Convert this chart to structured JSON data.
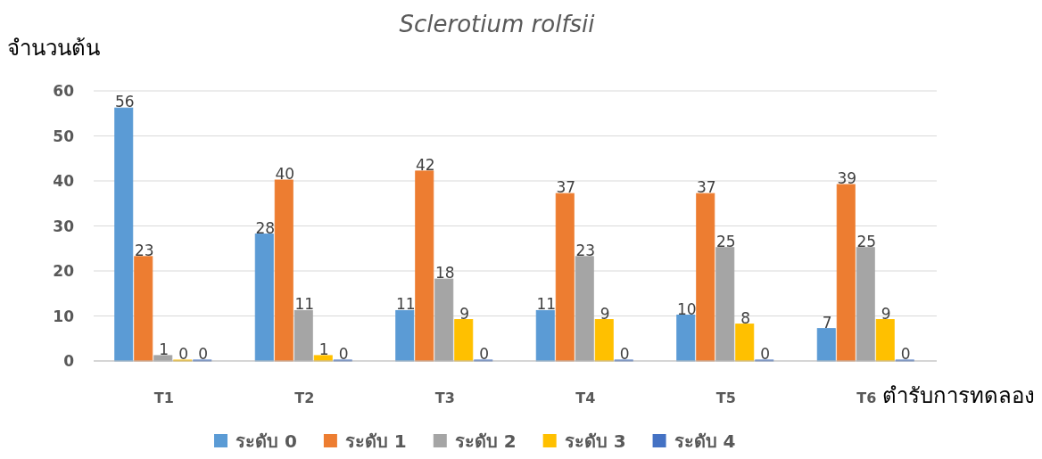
{
  "chart_data": {
    "type": "bar",
    "title": "Sclerotium rolfsii",
    "ylabel": "จำนวนต้น",
    "xlabel": "ตำรับการทดลอง",
    "categories": [
      "T1",
      "T2",
      "T3",
      "T4",
      "T5",
      "T6"
    ],
    "series": [
      {
        "name": "ระดับ 0",
        "color": "#5b9bd5",
        "values": [
          56,
          28,
          11,
          11,
          10,
          7
        ]
      },
      {
        "name": "ระดับ 1",
        "color": "#ed7d31",
        "values": [
          23,
          40,
          42,
          37,
          37,
          39
        ]
      },
      {
        "name": "ระดับ 2",
        "color": "#a5a5a5",
        "values": [
          1,
          11,
          18,
          23,
          25,
          25
        ]
      },
      {
        "name": "ระดับ 3",
        "color": "#ffc000",
        "values": [
          0,
          1,
          9,
          9,
          8,
          9
        ]
      },
      {
        "name": "ระดับ 4",
        "color": "#4472c4",
        "values": [
          0,
          0,
          0,
          0,
          0,
          0
        ]
      }
    ],
    "ylim": [
      0,
      60
    ],
    "yticks": [
      0,
      10,
      20,
      30,
      40,
      50,
      60
    ],
    "grid": "y",
    "legend": "bottom",
    "data_labels": true
  }
}
